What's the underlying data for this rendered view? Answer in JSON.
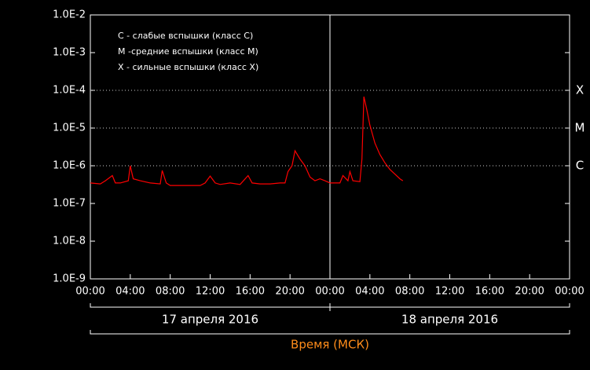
{
  "chart_data": {
    "type": "line",
    "legend": [
      "C - слабые вспышки (класс C)",
      "M -средние вспышки (класс M)",
      "X - сильные вспышки (класс X)"
    ],
    "x_label": "Время (МСК)",
    "date_labels": [
      "17 апреля 2016",
      "18 апреля 2016"
    ],
    "log_y": true,
    "xlim": [
      0,
      48
    ],
    "xticks": [
      {
        "value": 0,
        "label": "00:00"
      },
      {
        "value": 4,
        "label": "04:00"
      },
      {
        "value": 8,
        "label": "08:00"
      },
      {
        "value": 12,
        "label": "12:00"
      },
      {
        "value": 16,
        "label": "16:00"
      },
      {
        "value": 20,
        "label": "20:00"
      },
      {
        "value": 24,
        "label": "00:00"
      },
      {
        "value": 28,
        "label": "04:00"
      },
      {
        "value": 32,
        "label": "08:00"
      },
      {
        "value": 36,
        "label": "12:00"
      },
      {
        "value": 40,
        "label": "16:00"
      },
      {
        "value": 44,
        "label": "20:00"
      },
      {
        "value": 48,
        "label": "00:00"
      }
    ],
    "ylim": [
      1e-09,
      0.01
    ],
    "yticks": [
      {
        "value": 1e-09,
        "label": "1.0E-9"
      },
      {
        "value": 1e-08,
        "label": "1.0E-8"
      },
      {
        "value": 1e-07,
        "label": "1.0E-7"
      },
      {
        "value": 1e-06,
        "label": "1.0E-6"
      },
      {
        "value": 1e-05,
        "label": "1.0E-5"
      },
      {
        "value": 0.0001,
        "label": "1.0E-4"
      },
      {
        "value": 0.001,
        "label": "1.0E-3"
      },
      {
        "value": 0.01,
        "label": "1.0E-2"
      }
    ],
    "levels": [
      {
        "value": 0.0001,
        "label": "X"
      },
      {
        "value": 1e-05,
        "label": "M"
      },
      {
        "value": 1e-06,
        "label": "C"
      }
    ],
    "color": "#ff0000",
    "x": [
      0,
      1,
      1.5,
      2.2,
      2.5,
      3,
      3.8,
      4,
      4.3,
      5,
      6,
      7,
      7.2,
      7.6,
      8,
      9,
      10,
      11,
      11.5,
      12,
      12.5,
      13,
      14,
      15,
      15.8,
      16.2,
      17,
      18,
      19,
      19.5,
      19.8,
      20.2,
      20.5,
      21,
      21.5,
      22,
      22.5,
      23,
      23.5,
      24,
      24.5,
      25,
      25.3,
      25.8,
      26,
      26.3,
      27,
      27.2,
      27.4,
      27.7,
      28,
      28.5,
      29,
      29.5,
      30,
      30.5,
      31,
      31.3
    ],
    "values": [
      3.5e-07,
      3.3e-07,
      4e-07,
      5.5e-07,
      3.5e-07,
      3.5e-07,
      4e-07,
      1e-06,
      4.5e-07,
      4e-07,
      3.5e-07,
      3.3e-07,
      7.5e-07,
      3.5e-07,
      3e-07,
      3e-07,
      3e-07,
      3e-07,
      3.5e-07,
      5.3e-07,
      3.5e-07,
      3.2e-07,
      3.5e-07,
      3.2e-07,
      5.5e-07,
      3.5e-07,
      3.3e-07,
      3.3e-07,
      3.5e-07,
      3.5e-07,
      7e-07,
      1e-06,
      2.5e-06,
      1.5e-06,
      1e-06,
      5e-07,
      4e-07,
      4.5e-07,
      4e-07,
      3.5e-07,
      3.5e-07,
      3.5e-07,
      5.5e-07,
      4e-07,
      7e-07,
      4e-07,
      3.8e-07,
      1.5e-06,
      6.8e-05,
      3e-05,
      1.2e-05,
      4e-06,
      2e-06,
      1.2e-06,
      8e-07,
      6e-07,
      4.5e-07,
      4e-07
    ]
  }
}
